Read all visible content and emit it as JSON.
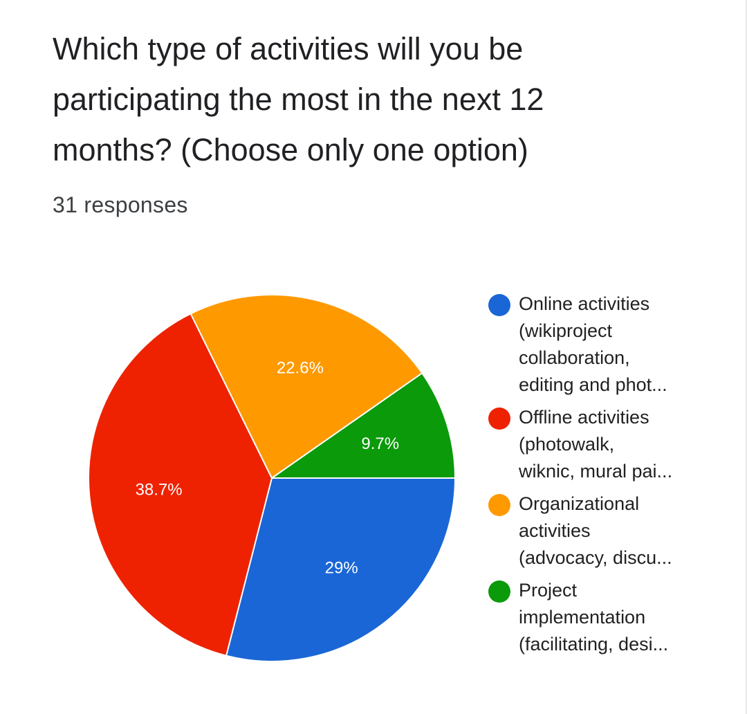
{
  "question": {
    "title_lines": [
      "Which type of activities will you be",
      "participating the most in the next 12",
      "months? (Choose only one option)"
    ],
    "responses_label": "31 responses"
  },
  "chart_data": {
    "type": "pie",
    "title": "Which type of activities will you be participating the most in the next 12 months? (Choose only one option)",
    "total_responses": 31,
    "slices": [
      {
        "name": "Online activities (wikiproject collaboration, editing and phot...",
        "legend_lines": [
          "Online activities",
          "(wikiproject",
          "collaboration,",
          "editing and phot..."
        ],
        "value": 29,
        "label": "29%",
        "color": "#1a66d6"
      },
      {
        "name": "Offline activities (photowalk, wiknic, mural pai...",
        "legend_lines": [
          "Offline activities",
          "(photowalk,",
          "wiknic, mural pai..."
        ],
        "value": 38.7,
        "label": "38.7%",
        "color": "#ee2200"
      },
      {
        "name": "Organizational activities (advocacy, discu...",
        "legend_lines": [
          "Organizational",
          "activities",
          "(advocacy, discu..."
        ],
        "value": 22.6,
        "label": "22.6%",
        "color": "#ff9900"
      },
      {
        "name": "Project implementation (facilitating, desi...",
        "legend_lines": [
          "Project",
          "implementation",
          "(facilitating, desi..."
        ],
        "value": 9.7,
        "label": "9.7%",
        "color": "#0a9a0a"
      }
    ],
    "start_angle_deg": 0,
    "direction": "clockwise",
    "legend_position": "right"
  }
}
